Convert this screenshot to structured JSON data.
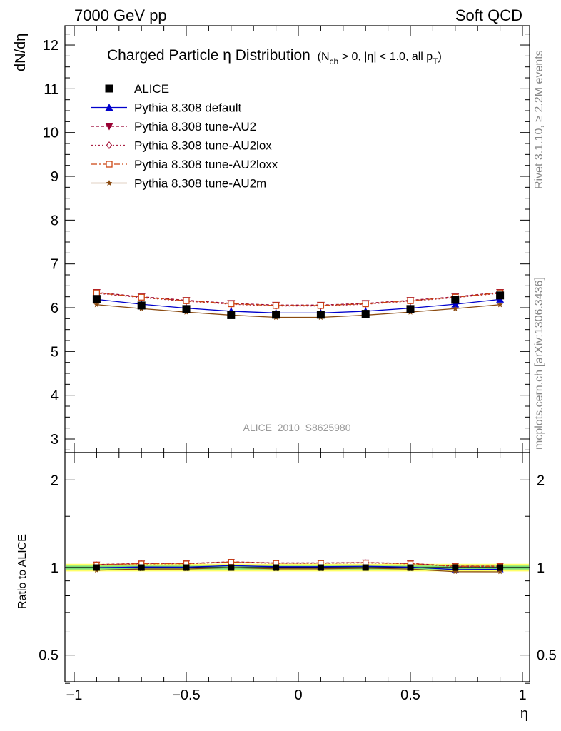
{
  "header": {
    "left": "7000 GeV pp",
    "right": "Soft QCD"
  },
  "side_labels": {
    "rivet": "Rivet 3.1.10, ≥ 2.2M events",
    "mcplots": "mcplots.cern.ch [arXiv:1306.3436]"
  },
  "chart_data": {
    "type": "line",
    "title_main": "Charged Particle η Distribution",
    "title_cond_a": "(N",
    "title_cond_sub1": "ch",
    "title_cond_b": " > 0, |η| < 1.0, all p",
    "title_cond_sub2": "T",
    "title_cond_c": ")",
    "analysis_id": "ALICE_2010_S8625980",
    "xlabel": "η",
    "ylabel_top": "dN/dη",
    "ylabel_bottom": "Ratio to ALICE",
    "xlim": [
      -1.05,
      1.05
    ],
    "ylim_top": [
      2.7,
      12.5
    ],
    "ylim_ratio": [
      0.35,
      2.25
    ],
    "x_ticks": [
      "−1",
      "−0.5",
      "0",
      "0.5",
      "1"
    ],
    "y_ticks_top": [
      "3",
      "4",
      "5",
      "6",
      "7",
      "8",
      "9",
      "10",
      "11",
      "12"
    ],
    "y_ticks_ratio": [
      "0.5",
      "1",
      "2"
    ],
    "x": [
      -0.9,
      -0.7,
      -0.5,
      -0.3,
      -0.1,
      0.1,
      0.3,
      0.5,
      0.7,
      0.9
    ],
    "series": [
      {
        "name": "ALICE",
        "color": "#000000",
        "marker": "square",
        "dash": "none",
        "values": [
          6.2,
          6.05,
          5.97,
          5.83,
          5.84,
          5.84,
          5.86,
          5.97,
          6.18,
          6.28
        ]
      },
      {
        "name": "Pythia 8.308 default",
        "color": "#0000cc",
        "marker": "triangle-up",
        "dash": "solid",
        "values": [
          6.19,
          6.08,
          5.99,
          5.92,
          5.88,
          5.88,
          5.92,
          5.99,
          6.08,
          6.19
        ]
      },
      {
        "name": "Pythia 8.308 tune-AU2",
        "color": "#990033",
        "marker": "triangle-down",
        "dash": "4,3",
        "values": [
          6.35,
          6.25,
          6.17,
          6.1,
          6.06,
          6.06,
          6.1,
          6.17,
          6.25,
          6.35
        ]
      },
      {
        "name": "Pythia 8.308 tune-AU2lox",
        "color": "#aa2244",
        "marker": "diamond-open",
        "dash": "2,3",
        "values": [
          6.33,
          6.23,
          6.15,
          6.08,
          6.04,
          6.04,
          6.08,
          6.15,
          6.23,
          6.33
        ]
      },
      {
        "name": "Pythia 8.308 tune-AU2loxx",
        "color": "#cc4411",
        "marker": "square-open",
        "dash": "8,3,2,3",
        "values": [
          6.34,
          6.24,
          6.16,
          6.09,
          6.05,
          6.05,
          6.09,
          6.16,
          6.24,
          6.34
        ]
      },
      {
        "name": "Pythia 8.308 tune-AU2m",
        "color": "#8a4a10",
        "marker": "star",
        "dash": "solid",
        "values": [
          6.07,
          5.98,
          5.9,
          5.83,
          5.78,
          5.78,
          5.83,
          5.9,
          5.98,
          6.07
        ]
      }
    ],
    "ratio_band": {
      "yellow": [
        0.97,
        1.03
      ],
      "green": [
        0.985,
        1.015
      ]
    },
    "colors": {
      "band_yellow": "#ffff66",
      "band_green": "#77dd77"
    }
  }
}
